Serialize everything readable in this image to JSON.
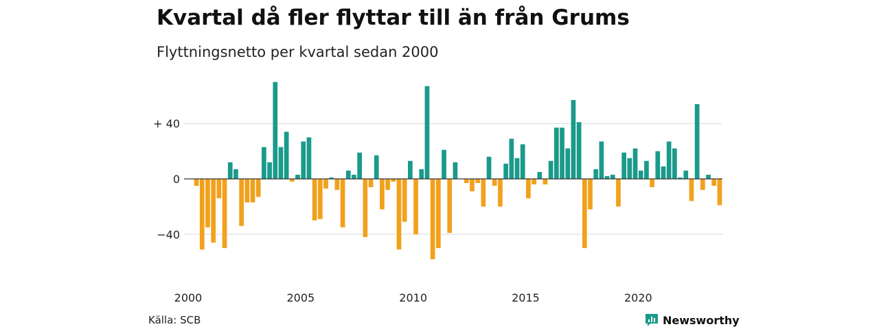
{
  "header": {
    "title": "Kvartal då fler flyttar till än från Grums",
    "subtitle": "Flyttningsnetto per kvartal sedan 2000"
  },
  "footer": {
    "source": "Källa: SCB",
    "brand": "Newsworthy",
    "brand_icon": "newsworthy-logo-icon"
  },
  "colors": {
    "positive": "#1a9a8a",
    "negative": "#f2a11c",
    "grid": "#d8d8d8",
    "zero_line": "#333333",
    "brand": "#1a9a8a"
  },
  "chart_data": {
    "type": "bar",
    "title": "Kvartal då fler flyttar till än från Grums",
    "subtitle": "Flyttningsnetto per kvartal sedan 2000",
    "xlabel": "",
    "ylabel": "",
    "ylim": [
      -66,
      72
    ],
    "grid": true,
    "y_ticks": [
      {
        "value": 40,
        "label": "+ 40"
      },
      {
        "value": 0,
        "label": "0"
      },
      {
        "value": -40,
        "label": "−40"
      }
    ],
    "x_ticks": [
      {
        "year": 2000,
        "label": "2000"
      },
      {
        "year": 2005,
        "label": "2005"
      },
      {
        "year": 2010,
        "label": "2010"
      },
      {
        "year": 2015,
        "label": "2015"
      },
      {
        "year": 2020,
        "label": "2020"
      }
    ],
    "start_year": 2000,
    "values": [
      -5,
      -51,
      -35,
      -46,
      -14,
      -50,
      12,
      7,
      -34,
      -17,
      -17,
      -13,
      23,
      12,
      70,
      23,
      34,
      -2,
      3,
      27,
      30,
      -30,
      -29,
      -7,
      1,
      -8,
      -35,
      6,
      3,
      19,
      -42,
      -6,
      17,
      -22,
      -8,
      -2,
      -51,
      -31,
      13,
      -40,
      7,
      67,
      -58,
      -50,
      21,
      -39,
      12,
      0,
      -3,
      -9,
      -3,
      -20,
      16,
      -5,
      -20,
      11,
      29,
      15,
      25,
      -14,
      -4,
      5,
      -4,
      13,
      37,
      37,
      22,
      57,
      41,
      -50,
      -22,
      7,
      27,
      2,
      3,
      -20,
      19,
      15,
      22,
      6,
      13,
      -6,
      20,
      9,
      27,
      22,
      1,
      6,
      -16,
      54,
      -8,
      3,
      -5,
      -19
    ]
  }
}
